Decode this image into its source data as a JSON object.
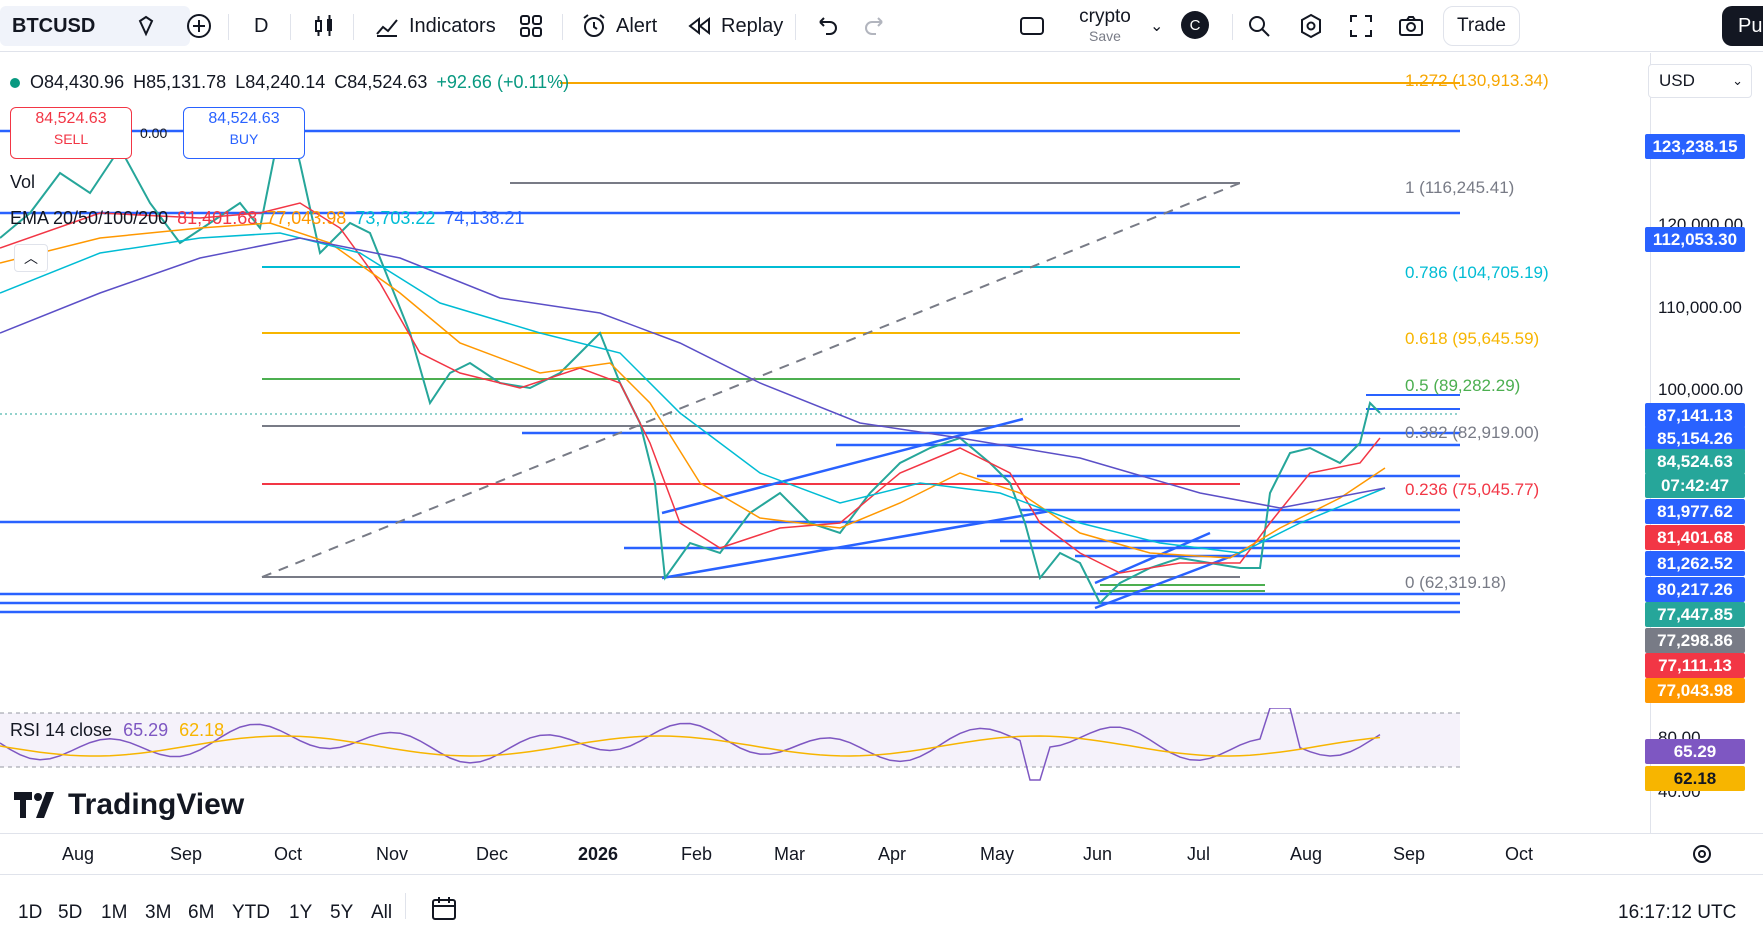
{
  "toolbar": {
    "symbol": "BTCUSD",
    "interval": "D",
    "indicators_label": "Indicators",
    "alert_label": "Alert",
    "replay_label": "Replay",
    "layout_name": "crypto",
    "layout_save": "Save",
    "avatar_letter": "C",
    "trade_label": "Trade",
    "publish_label": "Pu"
  },
  "legend": {
    "open": "O84,430.96",
    "high": "H85,131.78",
    "low": "L84,240.14",
    "close": "C84,524.63",
    "change": "+92.66 (+0.11%)",
    "sell_price": "84,524.63",
    "sell_label": "SELL",
    "spread": "0.00",
    "buy_price": "84,524.63",
    "buy_label": "BUY",
    "vol_label": "Vol",
    "ema_label": "EMA 20/50/100/200",
    "ema20": "81,401.68",
    "ema50": "77,043.98",
    "ema100": "73,703.22",
    "ema200": "74,138.21"
  },
  "currency": "USD",
  "fib_levels": [
    {
      "label": "1.272 (130,913.34)",
      "color": "#f7a600"
    },
    {
      "label": "1 (116,245.41)",
      "color": "#787b86"
    },
    {
      "label": "0.786 (104,705.19)",
      "color": "#00bcd4"
    },
    {
      "label": "0.618 (95,645.59)",
      "color": "#f7b500"
    },
    {
      "label": "0.5 (89,282.29)",
      "color": "#4caf50"
    },
    {
      "label": "0.382 (82,919.00)",
      "color": "#787b86"
    },
    {
      "label": "0.236 (75,045.77)",
      "color": "#f23645"
    },
    {
      "label": "0 (62,319.18)",
      "color": "#787b86"
    }
  ],
  "price_scale": [
    "120,000.00",
    "110,000.00",
    "100,000.00"
  ],
  "price_labels": [
    {
      "text": "123,238.15",
      "color": "#2962ff"
    },
    {
      "text": "112,053.30",
      "color": "#2962ff"
    },
    {
      "text": "87,141.13",
      "color": "#2962ff"
    },
    {
      "text": "85,154.26",
      "color": "#2962ff"
    },
    {
      "text": "84,524.63",
      "color": "#26a69a"
    },
    {
      "text": "07:42:47",
      "color": "#26a69a"
    },
    {
      "text": "81,977.62",
      "color": "#2962ff"
    },
    {
      "text": "81,401.68",
      "color": "#f23645"
    },
    {
      "text": "81,262.52",
      "color": "#2962ff"
    },
    {
      "text": "80,217.26",
      "color": "#2962ff"
    },
    {
      "text": "77,447.85",
      "color": "#26a69a"
    },
    {
      "text": "77,298.86",
      "color": "#787b86"
    },
    {
      "text": "77,111.13",
      "color": "#f23645"
    },
    {
      "text": "77,043.98",
      "color": "#ff9800"
    }
  ],
  "rsi": {
    "label": "RSI 14 close",
    "value": "65.29",
    "ma": "62.18",
    "scale_80": "80.00",
    "scale_40": "40.00"
  },
  "x_axis": [
    "Aug",
    "Sep",
    "Oct",
    "Nov",
    "Dec",
    "2026",
    "Feb",
    "Mar",
    "Apr",
    "May",
    "Jun",
    "Jul",
    "Aug",
    "Sep",
    "Oct"
  ],
  "ranges": [
    "1D",
    "5D",
    "1M",
    "3M",
    "6M",
    "YTD",
    "1Y",
    "5Y",
    "All"
  ],
  "clock": "16:17:12 UTC",
  "watermark": "TradingView"
}
